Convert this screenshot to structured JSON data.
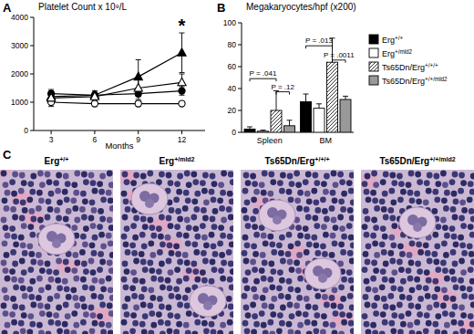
{
  "panel_labels": [
    "A",
    "B",
    "C"
  ],
  "chart_data": [
    {
      "type": "line",
      "title": "Platelet Count x 10⁹/L",
      "x_label": "Months",
      "x": [
        3,
        6,
        9,
        12
      ],
      "xlim": [
        1.8,
        13.6
      ],
      "xticks": [
        3,
        6,
        9,
        12
      ],
      "ylim": [
        0,
        4000
      ],
      "yticks": [
        0,
        1000,
        2000,
        3000,
        4000
      ],
      "series": [
        {
          "color": "#000000",
          "marker": "circle",
          "values": [
            1300,
            1250,
            1300,
            1400
          ],
          "errors": [
            150,
            100,
            200,
            150
          ]
        },
        {
          "color": "#000000",
          "marker": "circle-open",
          "values": [
            1000,
            950,
            950,
            950
          ],
          "errors": [
            150,
            100,
            100,
            50
          ]
        },
        {
          "color": "#000000",
          "marker": "triangle",
          "values": [
            1200,
            1250,
            1900,
            2750
          ],
          "errors": [
            200,
            150,
            600,
            700
          ]
        },
        {
          "color": "#000000",
          "marker": "triangle-open",
          "values": [
            1150,
            1200,
            1500,
            1700
          ],
          "errors": [
            150,
            150,
            300,
            300
          ]
        }
      ],
      "annotations": [
        {
          "text": "*",
          "x": 12,
          "y": 3750
        }
      ]
    },
    {
      "type": "bar",
      "title": "Megakaryocytes/hpf (x200)",
      "categories": [
        "Spleen",
        "BM"
      ],
      "ylim": [
        0,
        100
      ],
      "yticks": [
        0,
        20,
        40,
        60,
        80,
        100
      ],
      "legend": "right",
      "series": [
        {
          "name": "Erg+/+",
          "color": "#000000",
          "values": [
            3,
            28
          ],
          "errors": [
            2,
            7
          ]
        },
        {
          "name": "Erg+/mld2",
          "color": "#ffffff",
          "values": [
            1,
            22
          ],
          "errors": [
            1,
            4
          ]
        },
        {
          "name": "Ts65Dn/Erg+/+/+",
          "color": "#ffffff",
          "line_style": "hatched",
          "values": [
            20,
            64
          ],
          "errors": [
            18,
            22
          ]
        },
        {
          "name": "Ts65Dn/Erg+/+/mld2",
          "color": "#999999",
          "values": [
            6,
            30
          ],
          "errors": [
            5,
            3
          ]
        }
      ],
      "annotations": [
        {
          "text": "P = .041",
          "category": 0,
          "series": [
            0,
            2
          ],
          "y": 49
        },
        {
          "text": "P = .12",
          "category": 0,
          "series": [
            2,
            3
          ],
          "y": 37
        },
        {
          "text": "P = .013",
          "category": 1,
          "series": [
            0,
            2
          ],
          "y": 79
        },
        {
          "text": "P = .0011",
          "category": 1,
          "series": [
            2,
            3
          ],
          "y": 66
        }
      ]
    }
  ],
  "image_panel": {
    "titles": [
      "Erg+/+",
      "Erg+/mld2",
      "Ts65Dn/Erg+/+/+",
      "Ts65Dn/Erg+/+/mld2"
    ]
  }
}
